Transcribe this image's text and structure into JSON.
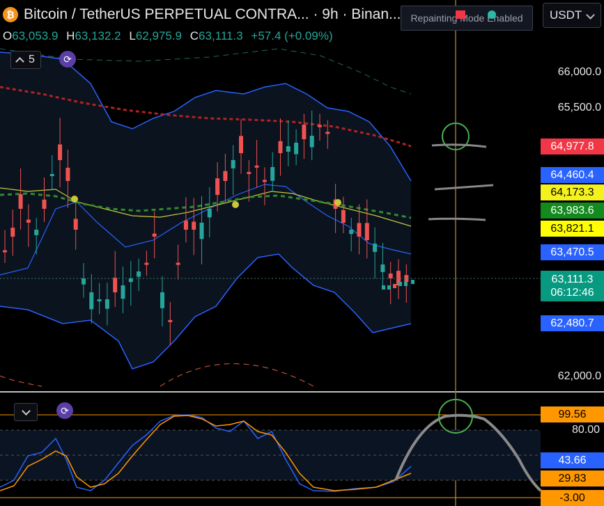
{
  "header": {
    "title": "Bitcoin / TetherUS PERPETUAL CONTRA... · 9h · Binan...",
    "coin_glyph": "₿"
  },
  "banner": {
    "text": "Repainting Mode Enabled"
  },
  "currency": {
    "value": "USDT"
  },
  "ohlc": {
    "o_label": "O",
    "o": "63,053.9",
    "h_label": "H",
    "h": "63,132.2",
    "l_label": "L",
    "l": "62,975.9",
    "c_label": "C",
    "c": "63,111.3",
    "change": "+57.4 (+0.09%)"
  },
  "controls": {
    "indicator_count": "5"
  },
  "price_axis": {
    "ticks": [
      "66,000.0",
      "65,500.0",
      "62,000.0"
    ],
    "badges": [
      {
        "text": "64,977.8",
        "bg": "#f23645",
        "fg": "#ffffff"
      },
      {
        "text": "64,460.4",
        "bg": "#2962ff",
        "fg": "#ffffff"
      },
      {
        "text": "64,173.3",
        "bg": "#f5f11c",
        "fg": "#000000"
      },
      {
        "text": "63,983.6",
        "bg": "#138a1e",
        "fg": "#ffffff"
      },
      {
        "text": "63,821.1",
        "bg": "#ffff00",
        "fg": "#000000"
      },
      {
        "text": "63,470.5",
        "bg": "#2962ff",
        "fg": "#ffffff"
      },
      {
        "text": "62,480.7",
        "bg": "#2962ff",
        "fg": "#ffffff"
      }
    ],
    "last_price": "63,111.3",
    "countdown": "06:12:46",
    "last_bg": "#089981"
  },
  "osc_axis": {
    "ticks": [
      "80.00"
    ],
    "badges": [
      {
        "text": "99.56",
        "bg": "#ff9800",
        "fg": "#000000"
      },
      {
        "text": "43.66",
        "bg": "#2962ff",
        "fg": "#ffffff"
      },
      {
        "text": "29.83",
        "bg": "#ff9800",
        "fg": "#000000"
      },
      {
        "text": "-3.00",
        "bg": "#ff9800",
        "fg": "#000000"
      }
    ]
  },
  "colors": {
    "up": "#26a69a",
    "down": "#ef5350",
    "bollinger": "#2962ff",
    "osc_k": "#2962ff",
    "osc_d": "#ff9800"
  },
  "icons": {
    "coin": "bitcoin-icon",
    "sync": "sync-icon",
    "chevron": "chevron-down-icon"
  }
}
